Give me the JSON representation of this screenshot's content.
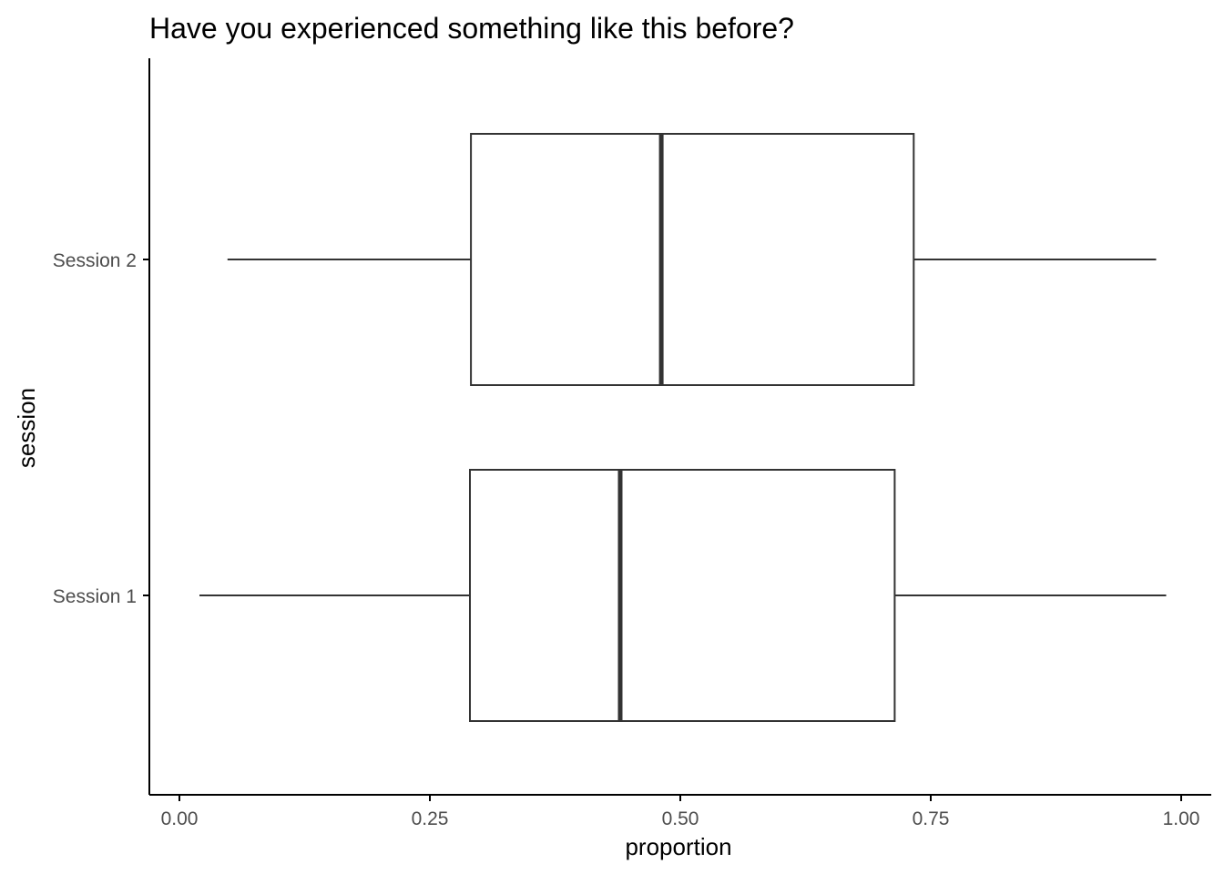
{
  "chart_data": {
    "type": "boxplot",
    "orientation": "horizontal",
    "title": "Have you experienced something like this before?",
    "xlabel": "proportion",
    "ylabel": "session",
    "xlim": [
      -0.03,
      1.03
    ],
    "x_ticks": [
      0,
      0.25,
      0.5,
      0.75,
      1
    ],
    "x_tick_labels": [
      "0.00",
      "0.25",
      "0.50",
      "0.75",
      "1.00"
    ],
    "categories": [
      "Session 1",
      "Session 2"
    ],
    "boxes": [
      {
        "label": "Session 1",
        "whisker_low": 0.02,
        "q1": 0.29,
        "median": 0.44,
        "q3": 0.714,
        "whisker_high": 0.985
      },
      {
        "label": "Session 2",
        "whisker_low": 0.048,
        "q1": 0.291,
        "median": 0.481,
        "q3": 0.733,
        "whisker_high": 0.975
      }
    ],
    "grid": false,
    "legend": "none",
    "colors": {
      "box_fill": "#ffffff",
      "box_stroke": "#333333",
      "axis": "#000000",
      "tick_label": "#4d4d4d"
    }
  }
}
